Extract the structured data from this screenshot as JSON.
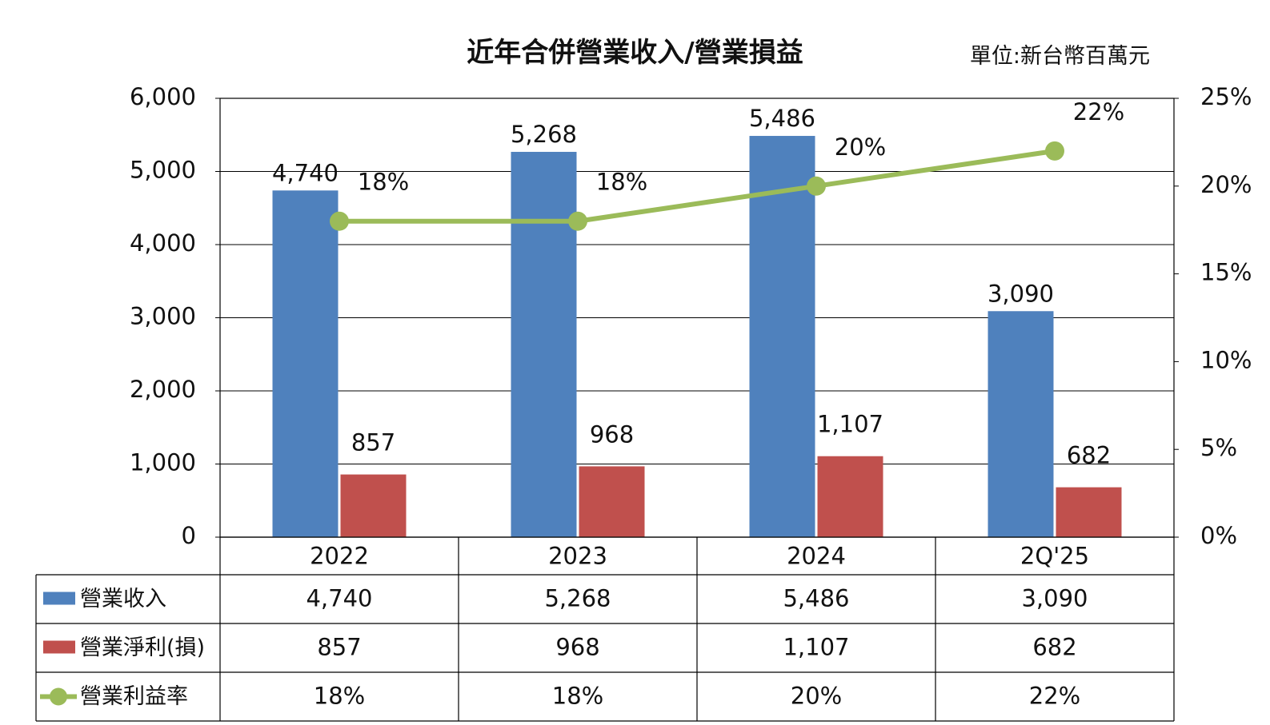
{
  "header": {
    "title": "近年合併營業收入/營業損益",
    "unit": "單位:新台幣百萬元"
  },
  "chart_data": {
    "type": "bar",
    "title": "近年合併營業收入/營業損益",
    "unit_note": "單位:新台幣百萬元",
    "categories": [
      "2022",
      "2023",
      "2024",
      "2Q'25"
    ],
    "series": [
      {
        "name": "營業收入",
        "type": "bar",
        "axis": "left",
        "color": "#4F81BD",
        "values": [
          4740,
          5268,
          5486,
          3090
        ],
        "labels": [
          "4,740",
          "5,268",
          "5,486",
          "3,090"
        ]
      },
      {
        "name": "營業淨利(損)",
        "type": "bar",
        "axis": "left",
        "color": "#C0504D",
        "values": [
          857,
          968,
          1107,
          682
        ],
        "labels": [
          "857",
          "968",
          "1,107",
          "682"
        ]
      },
      {
        "name": "營業利益率",
        "type": "line",
        "axis": "right",
        "color": "#9BBB59",
        "values": [
          18,
          18,
          20,
          22
        ],
        "labels": [
          "18%",
          "18%",
          "20%",
          "22%"
        ]
      }
    ],
    "y_left": {
      "min": 0,
      "max": 6000,
      "ticks": [
        0,
        1000,
        2000,
        3000,
        4000,
        5000,
        6000
      ],
      "tick_labels": [
        "0",
        "1,000",
        "2,000",
        "3,000",
        "4,000",
        "5,000",
        "6,000"
      ]
    },
    "y_right": {
      "min": 0,
      "max": 25,
      "ticks": [
        0,
        5,
        10,
        15,
        20,
        25
      ],
      "tick_labels": [
        "0%",
        "5%",
        "10%",
        "15%",
        "20%",
        "25%"
      ]
    },
    "grid": true,
    "legend": "data-table"
  }
}
